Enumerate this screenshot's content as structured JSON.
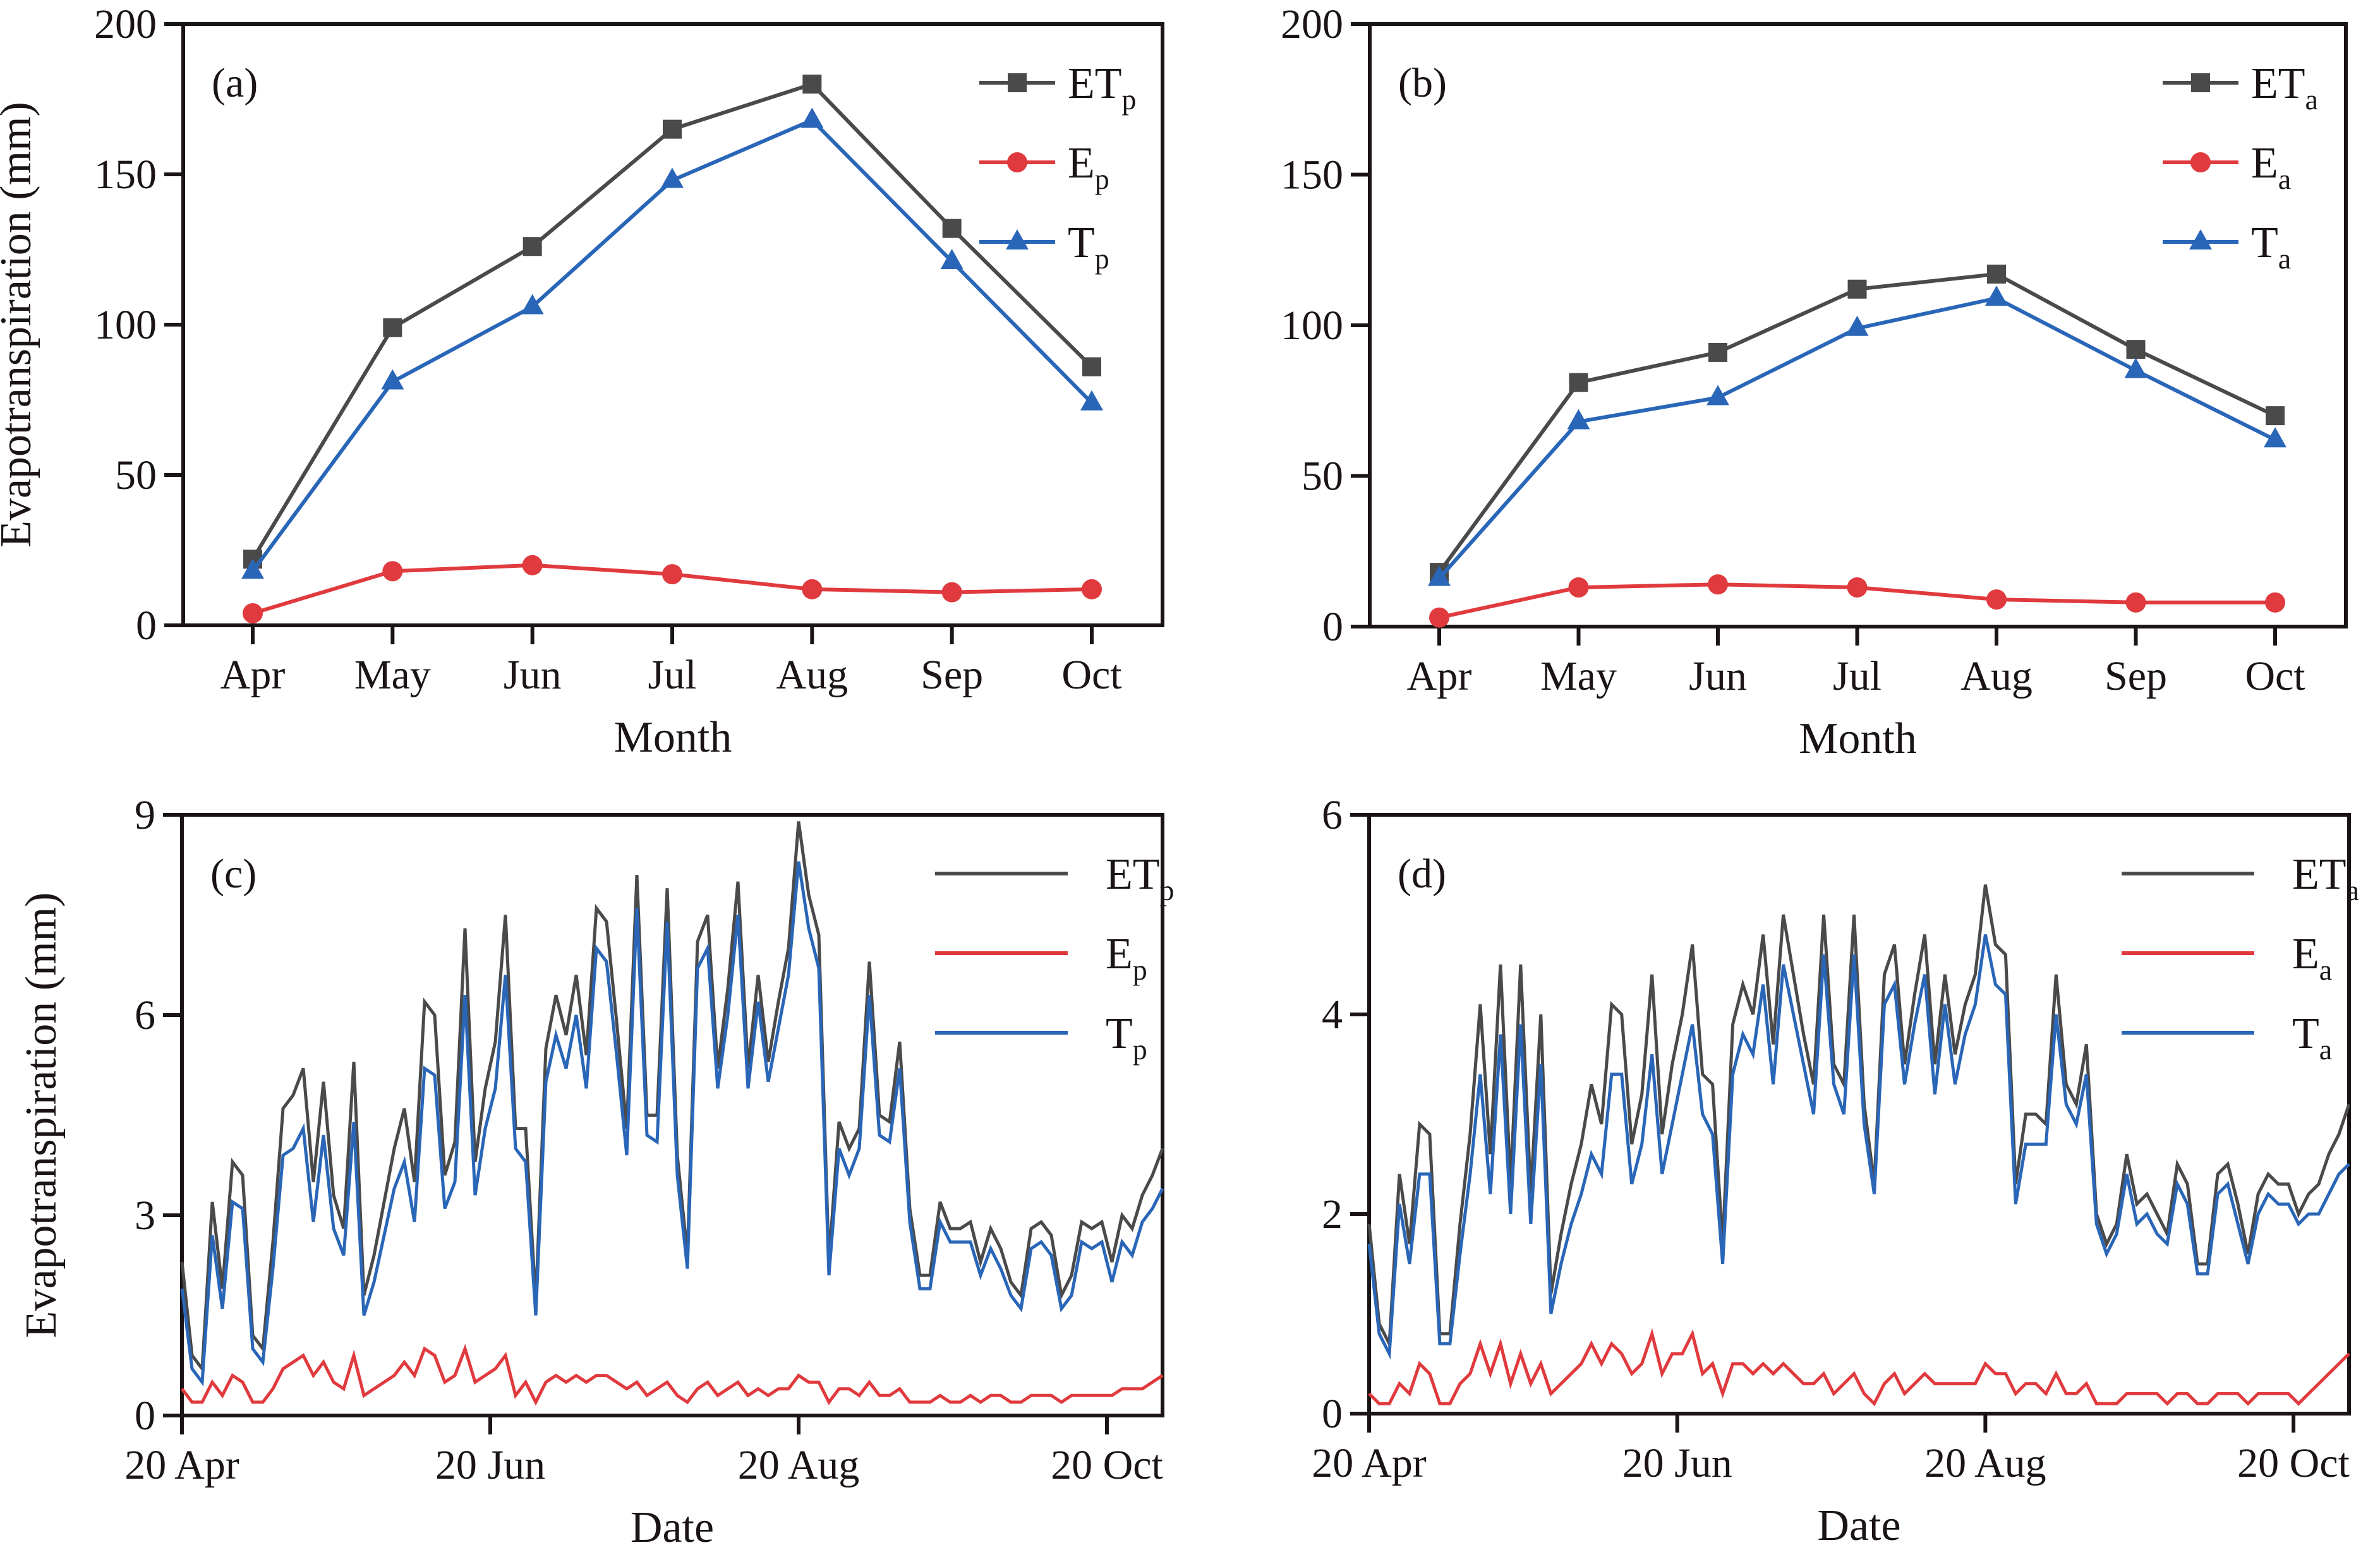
{
  "figure": {
    "colors": {
      "ET": "#4a4a4a",
      "E": "#e03a3e",
      "T": "#2a66b8",
      "axis": "#1a1414"
    }
  },
  "chart_data": [
    {
      "id": "a",
      "panel_label": "(a)",
      "type": "line",
      "xlabel": "Month",
      "ylabel": "Evapotranspiration (mm)",
      "categories": [
        "Apr",
        "May",
        "Jun",
        "Jul",
        "Aug",
        "Sep",
        "Oct"
      ],
      "ylim": [
        0,
        200
      ],
      "yticks": [
        0,
        50,
        100,
        150,
        200
      ],
      "grid": false,
      "legend_position": "top-right",
      "series": [
        {
          "key": "ET",
          "name": "ET",
          "sub": "p",
          "marker": "square",
          "values": [
            22,
            99,
            126,
            165,
            180,
            132,
            86
          ]
        },
        {
          "key": "E",
          "name": "E",
          "sub": "p",
          "marker": "circle",
          "values": [
            4,
            18,
            20,
            17,
            12,
            11,
            12
          ]
        },
        {
          "key": "T",
          "name": "T",
          "sub": "p",
          "marker": "triangle",
          "values": [
            18,
            81,
            106,
            148,
            168,
            121,
            74
          ]
        }
      ]
    },
    {
      "id": "b",
      "panel_label": "(b)",
      "type": "line",
      "xlabel": "Month",
      "ylabel": "",
      "categories": [
        "Apr",
        "May",
        "Jun",
        "Jul",
        "Aug",
        "Sep",
        "Oct"
      ],
      "ylim": [
        0,
        200
      ],
      "yticks": [
        0,
        50,
        100,
        150,
        200
      ],
      "grid": false,
      "legend_position": "top-right",
      "series": [
        {
          "key": "ET",
          "name": "ET",
          "sub": "a",
          "marker": "square",
          "values": [
            18,
            81,
            91,
            112,
            117,
            92,
            70
          ]
        },
        {
          "key": "E",
          "name": "E",
          "sub": "a",
          "marker": "circle",
          "values": [
            3,
            13,
            14,
            13,
            9,
            8,
            8
          ]
        },
        {
          "key": "T",
          "name": "T",
          "sub": "a",
          "marker": "triangle",
          "values": [
            16,
            68,
            76,
            99,
            109,
            85,
            62
          ]
        }
      ]
    },
    {
      "id": "c",
      "panel_label": "(c)",
      "type": "line",
      "xlabel": "Date",
      "ylabel": "Evapotranspiration (mm)",
      "x_unit": "days since 20 Apr",
      "xlim": [
        0,
        194
      ],
      "xticks": [
        {
          "day": 0,
          "label": "20 Apr"
        },
        {
          "day": 61,
          "label": "20 Jun"
        },
        {
          "day": 122,
          "label": "20 Aug"
        },
        {
          "day": 183,
          "label": "20 Oct"
        }
      ],
      "ylim": [
        0,
        9
      ],
      "yticks": [
        0,
        3,
        6,
        9
      ],
      "grid": false,
      "legend_position": "top-right",
      "x_step_days": 2,
      "series": [
        {
          "key": "ET",
          "name": "ET",
          "sub": "p",
          "values": [
            2.3,
            0.9,
            0.7,
            3.2,
            1.9,
            3.8,
            3.6,
            1.2,
            1.0,
            2.6,
            4.6,
            4.8,
            5.2,
            3.5,
            5.0,
            3.3,
            2.8,
            5.3,
            1.8,
            2.4,
            3.2,
            4.0,
            4.6,
            3.5,
            6.2,
            6.0,
            3.6,
            4.1,
            7.3,
            3.8,
            4.9,
            5.6,
            7.5,
            4.3,
            4.3,
            1.7,
            5.5,
            6.3,
            5.7,
            6.6,
            5.4,
            7.6,
            7.4,
            5.9,
            4.3,
            8.1,
            4.5,
            4.5,
            7.9,
            3.9,
            2.4,
            7.1,
            7.5,
            5.2,
            6.4,
            8.0,
            5.2,
            6.6,
            5.3,
            6.2,
            7.0,
            8.9,
            7.8,
            7.2,
            2.3,
            4.4,
            4.0,
            4.3,
            6.8,
            4.5,
            4.4,
            5.6,
            3.1,
            2.1,
            2.1,
            3.2,
            2.8,
            2.8,
            2.9,
            2.3,
            2.8,
            2.5,
            2.0,
            1.8,
            2.8,
            2.9,
            2.7,
            1.8,
            2.1,
            2.9,
            2.8,
            2.9,
            2.3,
            3.0,
            2.8,
            3.3,
            3.6,
            4.0
          ]
        },
        {
          "key": "E",
          "name": "E",
          "sub": "p",
          "values": [
            0.4,
            0.2,
            0.2,
            0.5,
            0.3,
            0.6,
            0.5,
            0.2,
            0.2,
            0.4,
            0.7,
            0.8,
            0.9,
            0.6,
            0.8,
            0.5,
            0.4,
            0.9,
            0.3,
            0.4,
            0.5,
            0.6,
            0.8,
            0.6,
            1.0,
            0.9,
            0.5,
            0.6,
            1.0,
            0.5,
            0.6,
            0.7,
            0.9,
            0.3,
            0.5,
            0.2,
            0.5,
            0.6,
            0.5,
            0.6,
            0.5,
            0.6,
            0.6,
            0.5,
            0.4,
            0.5,
            0.3,
            0.4,
            0.5,
            0.3,
            0.2,
            0.4,
            0.5,
            0.3,
            0.4,
            0.5,
            0.3,
            0.4,
            0.3,
            0.4,
            0.4,
            0.6,
            0.5,
            0.5,
            0.2,
            0.4,
            0.4,
            0.3,
            0.5,
            0.3,
            0.3,
            0.4,
            0.2,
            0.2,
            0.2,
            0.3,
            0.2,
            0.2,
            0.3,
            0.2,
            0.3,
            0.3,
            0.2,
            0.2,
            0.3,
            0.3,
            0.3,
            0.2,
            0.3,
            0.3,
            0.3,
            0.3,
            0.3,
            0.4,
            0.4,
            0.4,
            0.5,
            0.6
          ]
        },
        {
          "key": "T",
          "name": "T",
          "sub": "p",
          "values": [
            1.9,
            0.7,
            0.5,
            2.7,
            1.6,
            3.2,
            3.1,
            1.0,
            0.8,
            2.2,
            3.9,
            4.0,
            4.3,
            2.9,
            4.2,
            2.8,
            2.4,
            4.4,
            1.5,
            2.0,
            2.7,
            3.4,
            3.8,
            2.9,
            5.2,
            5.1,
            3.1,
            3.5,
            6.3,
            3.3,
            4.3,
            4.9,
            6.6,
            4.0,
            3.8,
            1.5,
            5.0,
            5.7,
            5.2,
            6.0,
            4.9,
            7.0,
            6.8,
            5.4,
            3.9,
            7.6,
            4.2,
            4.1,
            7.4,
            3.6,
            2.2,
            6.7,
            7.0,
            4.9,
            6.0,
            7.5,
            4.9,
            6.2,
            5.0,
            5.8,
            6.6,
            8.3,
            7.3,
            6.7,
            2.1,
            4.0,
            3.6,
            4.0,
            6.3,
            4.2,
            4.1,
            5.2,
            2.9,
            1.9,
            1.9,
            2.9,
            2.6,
            2.6,
            2.6,
            2.1,
            2.5,
            2.2,
            1.8,
            1.6,
            2.5,
            2.6,
            2.4,
            1.6,
            1.8,
            2.6,
            2.5,
            2.6,
            2.0,
            2.6,
            2.4,
            2.9,
            3.1,
            3.4
          ]
        }
      ]
    },
    {
      "id": "d",
      "panel_label": "(d)",
      "type": "line",
      "xlabel": "Date",
      "ylabel": "",
      "x_unit": "days since 20 Apr",
      "xlim": [
        0,
        194
      ],
      "xticks": [
        {
          "day": 0,
          "label": "20 Apr"
        },
        {
          "day": 61,
          "label": "20 Jun"
        },
        {
          "day": 122,
          "label": "20 Aug"
        },
        {
          "day": 183,
          "label": "20 Oct"
        }
      ],
      "ylim": [
        0,
        6
      ],
      "yticks": [
        0,
        2,
        4,
        6
      ],
      "grid": false,
      "legend_position": "top-right",
      "x_step_days": 2,
      "series": [
        {
          "key": "ET",
          "name": "ET",
          "sub": "a",
          "values": [
            1.9,
            0.9,
            0.7,
            2.4,
            1.7,
            2.9,
            2.8,
            0.8,
            0.8,
            1.9,
            2.8,
            4.1,
            2.6,
            4.5,
            2.3,
            4.5,
            2.2,
            4.0,
            1.2,
            1.8,
            2.3,
            2.7,
            3.3,
            2.9,
            4.1,
            4.0,
            2.7,
            3.2,
            4.4,
            2.8,
            3.5,
            4.0,
            4.7,
            3.4,
            3.3,
            1.7,
            3.9,
            4.3,
            4.0,
            4.8,
            3.7,
            5.0,
            4.4,
            3.8,
            3.3,
            5.0,
            3.5,
            3.3,
            5.0,
            3.1,
            2.3,
            4.4,
            4.7,
            3.5,
            4.2,
            4.8,
            3.5,
            4.4,
            3.6,
            4.1,
            4.4,
            5.3,
            4.7,
            4.6,
            2.3,
            3.0,
            3.0,
            2.9,
            4.4,
            3.3,
            3.1,
            3.7,
            2.0,
            1.7,
            1.9,
            2.6,
            2.1,
            2.2,
            2.0,
            1.8,
            2.5,
            2.3,
            1.5,
            1.5,
            2.4,
            2.5,
            2.1,
            1.6,
            2.2,
            2.4,
            2.3,
            2.3,
            2.0,
            2.2,
            2.3,
            2.6,
            2.8,
            3.1
          ]
        },
        {
          "key": "E",
          "name": "E",
          "sub": "a",
          "values": [
            0.2,
            0.1,
            0.1,
            0.3,
            0.2,
            0.5,
            0.4,
            0.1,
            0.1,
            0.3,
            0.4,
            0.7,
            0.4,
            0.7,
            0.3,
            0.6,
            0.3,
            0.5,
            0.2,
            0.3,
            0.4,
            0.5,
            0.7,
            0.5,
            0.7,
            0.6,
            0.4,
            0.5,
            0.8,
            0.4,
            0.6,
            0.6,
            0.8,
            0.4,
            0.5,
            0.2,
            0.5,
            0.5,
            0.4,
            0.5,
            0.4,
            0.5,
            0.4,
            0.3,
            0.3,
            0.4,
            0.2,
            0.3,
            0.4,
            0.2,
            0.1,
            0.3,
            0.4,
            0.2,
            0.3,
            0.4,
            0.3,
            0.3,
            0.3,
            0.3,
            0.3,
            0.5,
            0.4,
            0.4,
            0.2,
            0.3,
            0.3,
            0.2,
            0.4,
            0.2,
            0.2,
            0.3,
            0.1,
            0.1,
            0.1,
            0.2,
            0.2,
            0.2,
            0.2,
            0.1,
            0.2,
            0.2,
            0.1,
            0.1,
            0.2,
            0.2,
            0.2,
            0.1,
            0.2,
            0.2,
            0.2,
            0.2,
            0.1,
            0.2,
            0.3,
            0.4,
            0.5,
            0.6
          ]
        },
        {
          "key": "T",
          "name": "T",
          "sub": "a",
          "values": [
            1.7,
            0.8,
            0.6,
            2.1,
            1.5,
            2.4,
            2.4,
            0.7,
            0.7,
            1.6,
            2.4,
            3.4,
            2.2,
            3.8,
            2.0,
            3.9,
            1.9,
            3.5,
            1.0,
            1.5,
            1.9,
            2.2,
            2.6,
            2.4,
            3.4,
            3.4,
            2.3,
            2.7,
            3.6,
            2.4,
            2.9,
            3.4,
            3.9,
            3.0,
            2.8,
            1.5,
            3.4,
            3.8,
            3.6,
            4.3,
            3.3,
            4.5,
            4.0,
            3.5,
            3.0,
            4.6,
            3.3,
            3.0,
            4.6,
            2.9,
            2.2,
            4.1,
            4.3,
            3.3,
            3.9,
            4.4,
            3.2,
            4.1,
            3.3,
            3.8,
            4.1,
            4.8,
            4.3,
            4.2,
            2.1,
            2.7,
            2.7,
            2.7,
            4.0,
            3.1,
            2.9,
            3.4,
            1.9,
            1.6,
            1.8,
            2.4,
            1.9,
            2.0,
            1.8,
            1.7,
            2.3,
            2.1,
            1.4,
            1.4,
            2.2,
            2.3,
            1.9,
            1.5,
            2.0,
            2.2,
            2.1,
            2.1,
            1.9,
            2.0,
            2.0,
            2.2,
            2.4,
            2.5
          ]
        }
      ]
    }
  ]
}
